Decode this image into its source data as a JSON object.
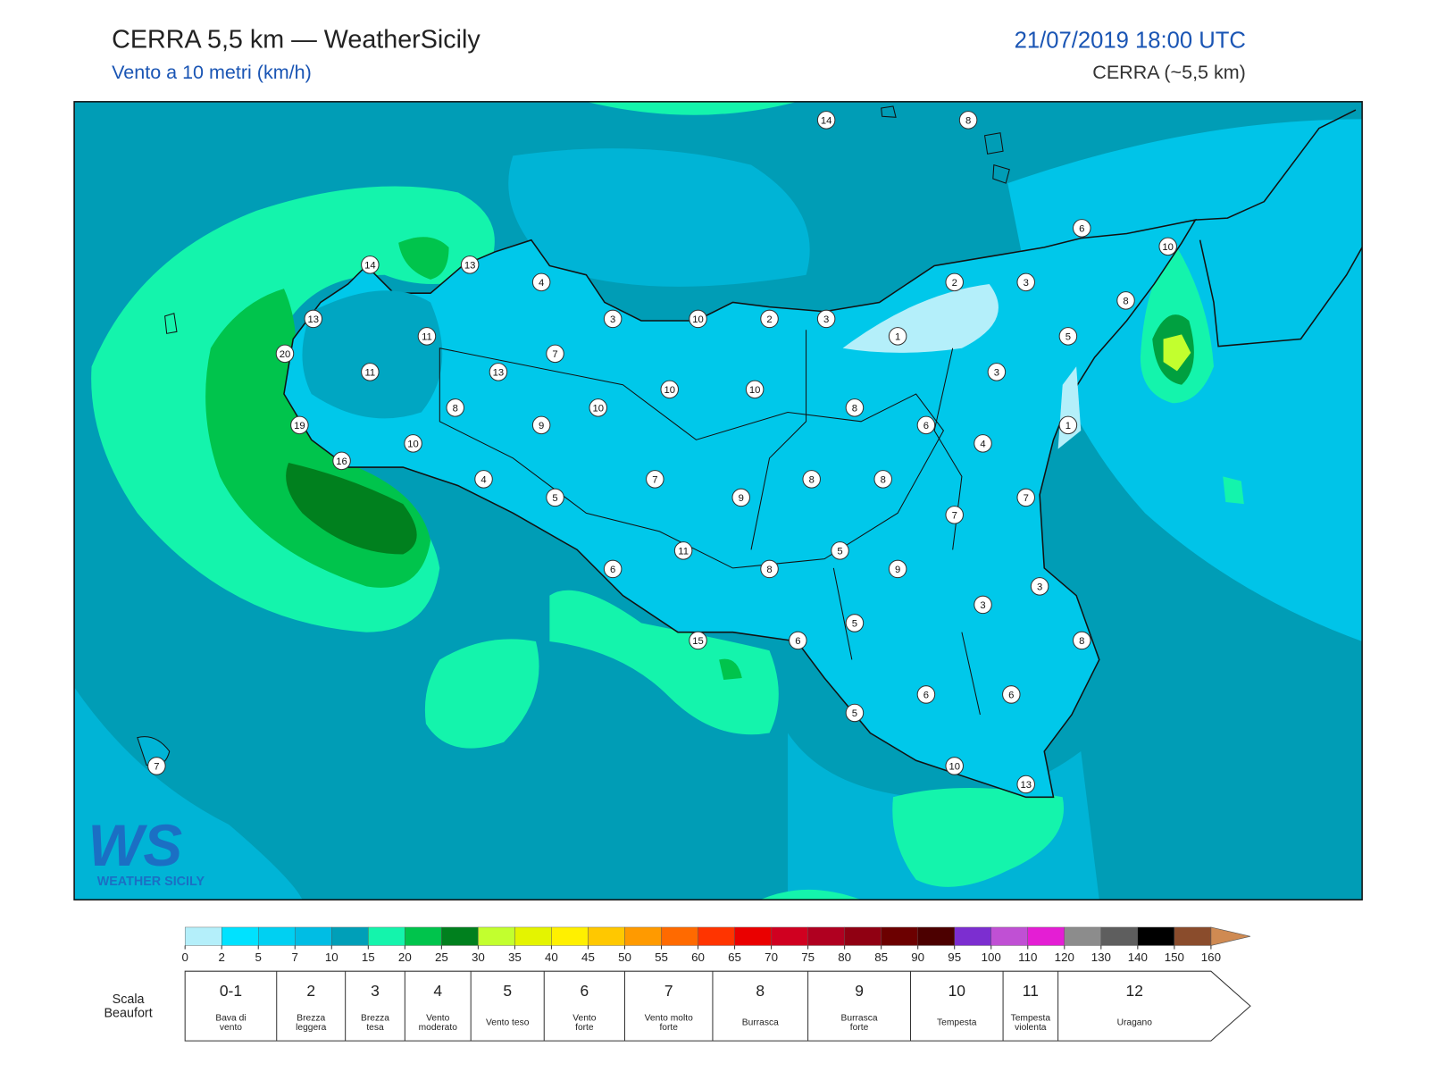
{
  "header": {
    "title": "CERRA 5,5 km — WeatherSicily",
    "subtitle": "Vento a 10 metri (km/h)",
    "datetime": "21/07/2019 18:00 UTC",
    "model": "CERRA (~5,5 km)"
  },
  "map": {
    "wind_labels": [
      14,
      8,
      6,
      10,
      14,
      13,
      4,
      2,
      3,
      8,
      13,
      3,
      10,
      2,
      3,
      11,
      1,
      5,
      20,
      7,
      11,
      13,
      3,
      10,
      10,
      8,
      10,
      8,
      9,
      6,
      1,
      19,
      10,
      4,
      16,
      4,
      7,
      8,
      8,
      5,
      9,
      7,
      7,
      11,
      5,
      6,
      8,
      9,
      3,
      3,
      5,
      6,
      15,
      8,
      6,
      6,
      5,
      7,
      10,
      13
    ],
    "logo": {
      "initials": "WS",
      "name": "WEATHER SICILY"
    }
  },
  "colorbar": {
    "ticks": [
      0,
      2,
      5,
      7,
      10,
      15,
      20,
      25,
      30,
      35,
      40,
      45,
      50,
      55,
      60,
      65,
      70,
      75,
      80,
      85,
      90,
      95,
      100,
      110,
      120,
      130,
      140,
      150,
      160
    ],
    "colors": [
      "#b4effa",
      "#00e2ff",
      "#00d0f2",
      "#00bde4",
      "#009fb8",
      "#14f4ac",
      "#00c44c",
      "#00801e",
      "#c2ff2e",
      "#e4f400",
      "#fff000",
      "#ffc800",
      "#ff9a00",
      "#ff6a00",
      "#ff3400",
      "#ea0000",
      "#d00020",
      "#b00020",
      "#900012",
      "#6c0000",
      "#4c0000",
      "#7c2ed0",
      "#c050d4",
      "#e41ed4",
      "#8c8c8c",
      "#5e5e5e",
      "#000000",
      "#8a4c2c",
      "#cf8a52"
    ]
  },
  "beaufort": {
    "label": [
      "Scala",
      "Beaufort"
    ],
    "levels": [
      {
        "force": "0-1",
        "description": [
          "Bava di",
          "vento"
        ]
      },
      {
        "force": "2",
        "description": [
          "Brezza",
          "leggera"
        ]
      },
      {
        "force": "3",
        "description": [
          "Brezza",
          "tesa"
        ]
      },
      {
        "force": "4",
        "description": [
          "Vento",
          "moderato"
        ]
      },
      {
        "force": "5",
        "description": [
          "Vento teso"
        ]
      },
      {
        "force": "6",
        "description": [
          "Vento",
          "forte"
        ]
      },
      {
        "force": "7",
        "description": [
          "Vento molto",
          "forte"
        ]
      },
      {
        "force": "8",
        "description": [
          "Burrasca"
        ]
      },
      {
        "force": "9",
        "description": [
          "Burrasca",
          "forte"
        ]
      },
      {
        "force": "10",
        "description": [
          "Tempesta"
        ]
      },
      {
        "force": "11",
        "description": [
          "Tempesta",
          "violenta"
        ]
      },
      {
        "force": "12",
        "description": [
          "Uragano"
        ]
      }
    ]
  }
}
